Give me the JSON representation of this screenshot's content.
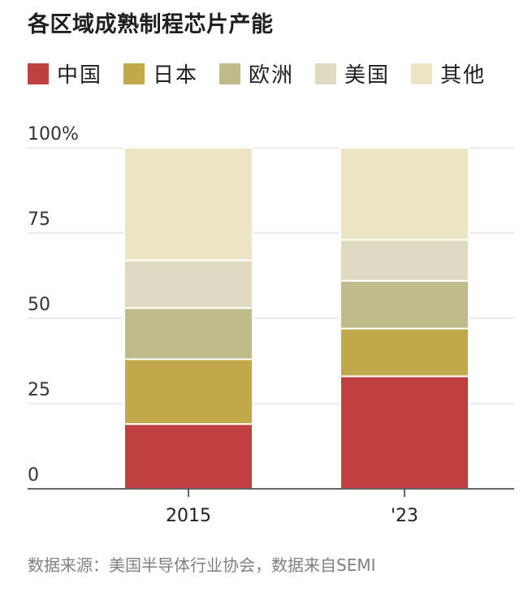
{
  "chart_data": {
    "type": "bar",
    "stacked": true,
    "title": "各区域成熟制程芯片产能",
    "categories": [
      "2015",
      "'23"
    ],
    "series": [
      {
        "name": "中国",
        "color": "#c0403f",
        "values": [
          19,
          33
        ]
      },
      {
        "name": "日本",
        "color": "#c1a84a",
        "values": [
          19,
          14
        ]
      },
      {
        "name": "欧洲",
        "color": "#bfbb8a",
        "values": [
          15,
          14
        ]
      },
      {
        "name": "美国",
        "color": "#dedbc1",
        "values": [
          14,
          12
        ]
      },
      {
        "name": "其他",
        "color": "#ebe5c4",
        "values": [
          33,
          27
        ]
      }
    ],
    "y_ticks": [
      "0",
      "25",
      "50",
      "75",
      "100%"
    ],
    "ylim": [
      0,
      100
    ],
    "grid": true,
    "legend_placement": "top-left"
  },
  "source_note": "数据来源：美国半导体行业协会，数据来自SEMI"
}
